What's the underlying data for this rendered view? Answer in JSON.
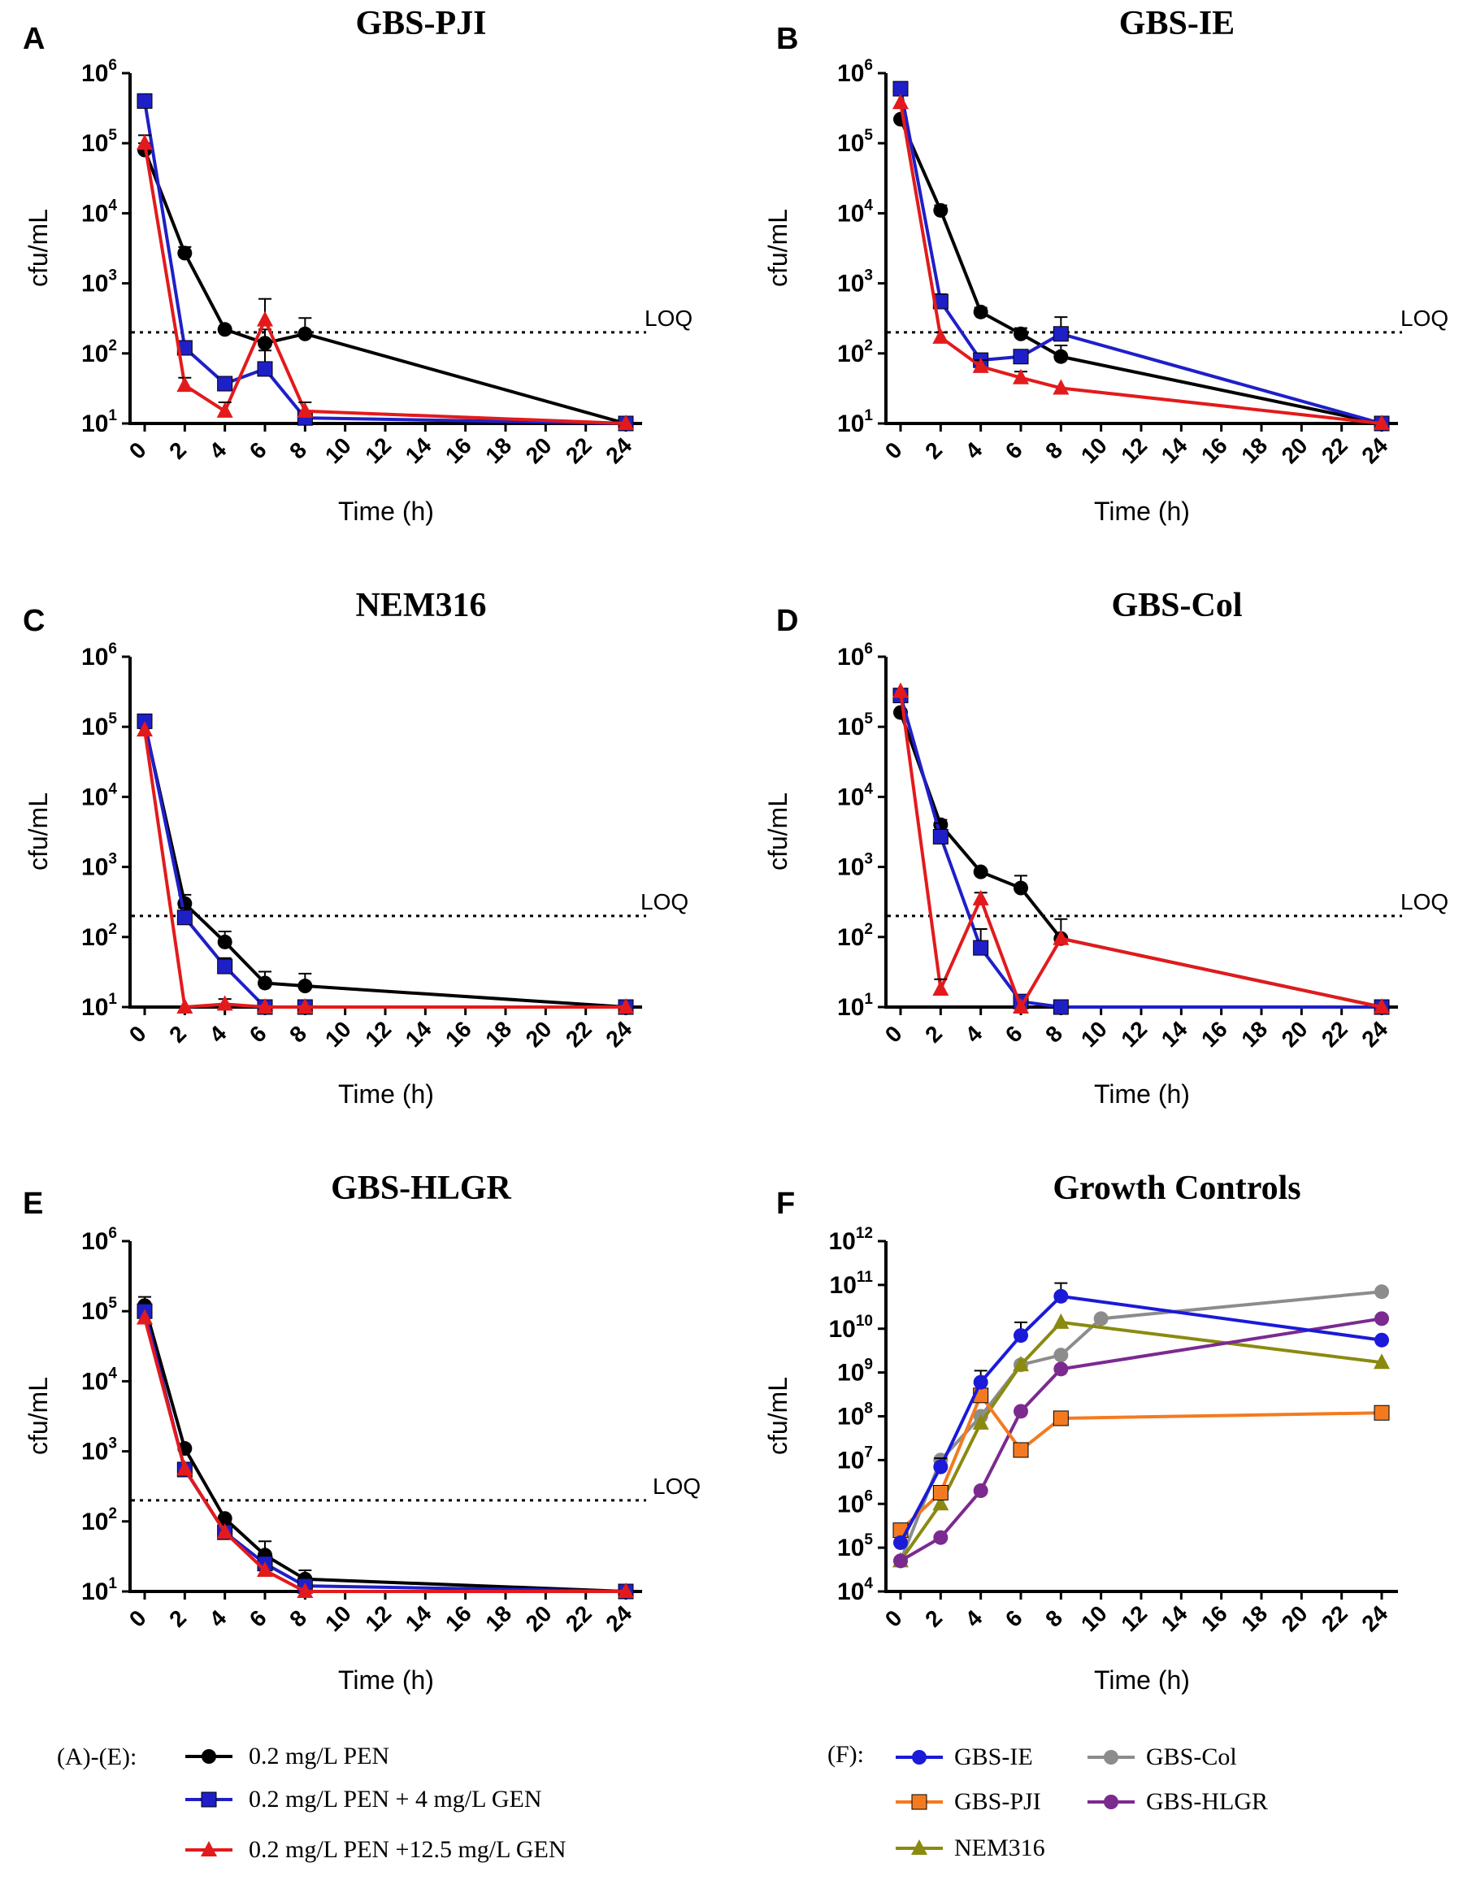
{
  "x_axis_label": "Time (h)",
  "y_axis_label": "cfu/mL",
  "loq_label": "LOQ",
  "x_ticks": [
    "0",
    "2",
    "4",
    "6",
    "8",
    "10",
    "12",
    "14",
    "16",
    "18",
    "20",
    "22",
    "24"
  ],
  "colors": {
    "pen": "#000000",
    "pen_gen4": "#1f1fc8",
    "pen_gen125": "#e31a1c",
    "gbs_ie": "#1a1ad8",
    "gbs_pji": "#f47a20",
    "nem316": "#8a8a10",
    "gbs_col": "#8c8c8c",
    "gbs_hlgr": "#7b2a90"
  },
  "legends": {
    "ae": {
      "prefix": "(A)-(E):",
      "items": [
        {
          "key": "pen",
          "label": "0.2 mg/L PEN",
          "marker": "circle"
        },
        {
          "key": "pen_gen4",
          "label": "0.2 mg/L PEN + 4 mg/L GEN",
          "marker": "square"
        },
        {
          "key": "pen_gen125",
          "label": "0.2 mg/L PEN +12.5 mg/L GEN",
          "marker": "triangle"
        }
      ]
    },
    "f": {
      "prefix": "(F):",
      "items": [
        {
          "key": "gbs_ie",
          "label": "GBS-IE",
          "marker": "circle"
        },
        {
          "key": "gbs_col",
          "label": "GBS-Col",
          "marker": "circle"
        },
        {
          "key": "gbs_pji",
          "label": "GBS-PJI",
          "marker": "square"
        },
        {
          "key": "gbs_hlgr",
          "label": "GBS-HLGR",
          "marker": "circle"
        },
        {
          "key": "nem316",
          "label": "NEM316",
          "marker": "triangle"
        }
      ]
    }
  },
  "chart_data": [
    {
      "panel": "A",
      "title": "GBS-PJI",
      "type": "line",
      "yscale": "log",
      "ylim_exp": [
        1,
        6
      ],
      "xlim": [
        0,
        24
      ],
      "loq": 200,
      "series": [
        {
          "key": "pen",
          "name": "0.2 mg/L PEN",
          "marker": "circle",
          "points": [
            [
              0,
              80000,
              100000
            ],
            [
              2,
              2700,
              3300
            ],
            [
              4,
              220,
              null
            ],
            [
              6,
              140,
              220
            ],
            [
              8,
              190,
              320
            ],
            [
              24,
              10,
              null
            ]
          ]
        },
        {
          "key": "pen_gen4",
          "name": "0.2 mg/L PEN + 4 mg/L GEN",
          "marker": "square",
          "points": [
            [
              0,
              400000,
              500000
            ],
            [
              2,
              120,
              null
            ],
            [
              4,
              37,
              null
            ],
            [
              6,
              60,
              110
            ],
            [
              8,
              12,
              null
            ],
            [
              24,
              10,
              null
            ]
          ]
        },
        {
          "key": "pen_gen125",
          "name": "0.2 mg/L PEN +12.5 mg/L GEN",
          "marker": "triangle",
          "points": [
            [
              0,
              100000,
              130000
            ],
            [
              2,
              35,
              45
            ],
            [
              4,
              15,
              20
            ],
            [
              6,
              300,
              600
            ],
            [
              8,
              15,
              20
            ],
            [
              24,
              10,
              null
            ]
          ]
        }
      ]
    },
    {
      "panel": "B",
      "title": "GBS-IE",
      "type": "line",
      "yscale": "log",
      "ylim_exp": [
        1,
        6
      ],
      "xlim": [
        0,
        24
      ],
      "loq": 200,
      "series": [
        {
          "key": "pen",
          "name": "0.2 mg/L PEN",
          "marker": "circle",
          "points": [
            [
              0,
              220000,
              null
            ],
            [
              2,
              11000,
              13000
            ],
            [
              4,
              390,
              450
            ],
            [
              6,
              190,
              230
            ],
            [
              8,
              90,
              130
            ],
            [
              24,
              10,
              null
            ]
          ]
        },
        {
          "key": "pen_gen4",
          "name": "0.2 mg/L PEN + 4 mg/L GEN",
          "marker": "square",
          "points": [
            [
              0,
              600000,
              700000
            ],
            [
              2,
              550,
              700
            ],
            [
              4,
              80,
              100
            ],
            [
              6,
              90,
              null
            ],
            [
              8,
              190,
              330
            ],
            [
              24,
              10,
              null
            ]
          ]
        },
        {
          "key": "pen_gen125",
          "name": "0.2 mg/L PEN +12.5 mg/L GEN",
          "marker": "triangle",
          "points": [
            [
              0,
              380000,
              null
            ],
            [
              2,
              170,
              200
            ],
            [
              4,
              65,
              80
            ],
            [
              6,
              45,
              55
            ],
            [
              8,
              32,
              null
            ],
            [
              24,
              10,
              null
            ]
          ]
        }
      ]
    },
    {
      "panel": "C",
      "title": "NEM316",
      "type": "line",
      "yscale": "log",
      "ylim_exp": [
        1,
        6
      ],
      "xlim": [
        0,
        24
      ],
      "loq": 200,
      "series": [
        {
          "key": "pen",
          "name": "0.2 mg/L PEN",
          "marker": "circle",
          "points": [
            [
              0,
              110000,
              130000
            ],
            [
              2,
              300,
              400
            ],
            [
              4,
              85,
              120
            ],
            [
              6,
              22,
              32
            ],
            [
              8,
              20,
              30
            ],
            [
              24,
              10,
              null
            ]
          ]
        },
        {
          "key": "pen_gen4",
          "name": "0.2 mg/L PEN + 4 mg/L GEN",
          "marker": "square",
          "points": [
            [
              0,
              120000,
              null
            ],
            [
              2,
              190,
              260
            ],
            [
              4,
              38,
              50
            ],
            [
              6,
              10,
              null
            ],
            [
              8,
              10,
              null
            ],
            [
              24,
              10,
              null
            ]
          ]
        },
        {
          "key": "pen_gen125",
          "name": "0.2 mg/L PEN +12.5 mg/L GEN",
          "marker": "triangle",
          "points": [
            [
              0,
              90000,
              null
            ],
            [
              2,
              10,
              null
            ],
            [
              4,
              11,
              13
            ],
            [
              6,
              10,
              null
            ],
            [
              8,
              10,
              null
            ],
            [
              24,
              10,
              null
            ]
          ]
        }
      ]
    },
    {
      "panel": "D",
      "title": "GBS-Col",
      "type": "line",
      "yscale": "log",
      "ylim_exp": [
        1,
        6
      ],
      "xlim": [
        0,
        24
      ],
      "loq": 200,
      "series": [
        {
          "key": "pen",
          "name": "0.2 mg/L PEN",
          "marker": "circle",
          "points": [
            [
              0,
              160000,
              null
            ],
            [
              2,
              4000,
              4700
            ],
            [
              4,
              850,
              null
            ],
            [
              6,
              500,
              750
            ],
            [
              8,
              95,
              180
            ],
            [
              24,
              10,
              null
            ]
          ]
        },
        {
          "key": "pen_gen4",
          "name": "0.2 mg/L PEN + 4 mg/L GEN",
          "marker": "square",
          "points": [
            [
              0,
              280000,
              null
            ],
            [
              2,
              2700,
              4200
            ],
            [
              4,
              70,
              130
            ],
            [
              6,
              12,
              null
            ],
            [
              8,
              10,
              null
            ],
            [
              24,
              10,
              null
            ]
          ]
        },
        {
          "key": "pen_gen125",
          "name": "0.2 mg/L PEN +12.5 mg/L GEN",
          "marker": "triangle",
          "points": [
            [
              0,
              320000,
              null
            ],
            [
              2,
              18,
              25
            ],
            [
              4,
              350,
              430
            ],
            [
              6,
              10,
              null
            ],
            [
              8,
              95,
              null
            ],
            [
              24,
              10,
              null
            ]
          ]
        }
      ]
    },
    {
      "panel": "E",
      "title": "GBS-HLGR",
      "type": "line",
      "yscale": "log",
      "ylim_exp": [
        1,
        6
      ],
      "xlim": [
        0,
        24
      ],
      "loq": 200,
      "series": [
        {
          "key": "pen",
          "name": "0.2 mg/L PEN",
          "marker": "circle",
          "points": [
            [
              0,
              120000,
              160000
            ],
            [
              2,
              1100,
              null
            ],
            [
              4,
              110,
              null
            ],
            [
              6,
              33,
              52
            ],
            [
              8,
              15,
              20
            ],
            [
              24,
              10,
              null
            ]
          ]
        },
        {
          "key": "pen_gen4",
          "name": "0.2 mg/L PEN + 4 mg/L GEN",
          "marker": "square",
          "points": [
            [
              0,
              100000,
              null
            ],
            [
              2,
              550,
              null
            ],
            [
              4,
              70,
              null
            ],
            [
              6,
              25,
              null
            ],
            [
              8,
              12,
              null
            ],
            [
              24,
              10,
              null
            ]
          ]
        },
        {
          "key": "pen_gen125",
          "name": "0.2 mg/L PEN +12.5 mg/L GEN",
          "marker": "triangle",
          "points": [
            [
              0,
              80000,
              null
            ],
            [
              2,
              560,
              null
            ],
            [
              4,
              70,
              null
            ],
            [
              6,
              20,
              null
            ],
            [
              8,
              10,
              null
            ],
            [
              24,
              10,
              null
            ]
          ]
        }
      ]
    },
    {
      "panel": "F",
      "title": "Growth Controls",
      "type": "line",
      "yscale": "log",
      "ylim_exp": [
        4,
        12
      ],
      "xlim": [
        0,
        24
      ],
      "loq": null,
      "series": [
        {
          "key": "gbs_col",
          "name": "GBS-Col",
          "marker": "circle",
          "points": [
            [
              0,
              50000,
              null
            ],
            [
              2,
              10000000,
              null
            ],
            [
              4,
              100000000,
              null
            ],
            [
              6,
              1500000000,
              null
            ],
            [
              8,
              2500000000,
              null
            ],
            [
              10,
              17000000000,
              null
            ],
            [
              24,
              70000000000,
              null
            ]
          ]
        },
        {
          "key": "nem316",
          "name": "NEM316",
          "marker": "triangle",
          "points": [
            [
              0,
              50000,
              null
            ],
            [
              2,
              1000000,
              null
            ],
            [
              4,
              70000000,
              null
            ],
            [
              6,
              1500000000,
              null
            ],
            [
              8,
              14000000000,
              null
            ],
            [
              24,
              1700000000,
              null
            ]
          ]
        },
        {
          "key": "gbs_hlgr",
          "name": "GBS-HLGR",
          "marker": "circle",
          "points": [
            [
              0,
              50000,
              null
            ],
            [
              2,
              170000,
              null
            ],
            [
              4,
              2000000,
              null
            ],
            [
              6,
              130000000,
              null
            ],
            [
              8,
              1200000000,
              null
            ],
            [
              24,
              17000000000,
              null
            ]
          ]
        },
        {
          "key": "gbs_pji",
          "name": "GBS-PJI",
          "marker": "square",
          "points": [
            [
              0,
              250000,
              null
            ],
            [
              2,
              1800000,
              null
            ],
            [
              4,
              300000000,
              null
            ],
            [
              6,
              17000000,
              null
            ],
            [
              8,
              90000000,
              null
            ],
            [
              24,
              120000000,
              null
            ]
          ]
        },
        {
          "key": "gbs_ie",
          "name": "GBS-IE",
          "marker": "circle",
          "points": [
            [
              0,
              130000,
              null
            ],
            [
              2,
              7000000,
              11000000
            ],
            [
              4,
              600000000,
              1100000000
            ],
            [
              6,
              7000000000,
              14000000000
            ],
            [
              8,
              55000000000,
              110000000000
            ],
            [
              24,
              5500000000,
              null
            ]
          ]
        }
      ]
    }
  ]
}
